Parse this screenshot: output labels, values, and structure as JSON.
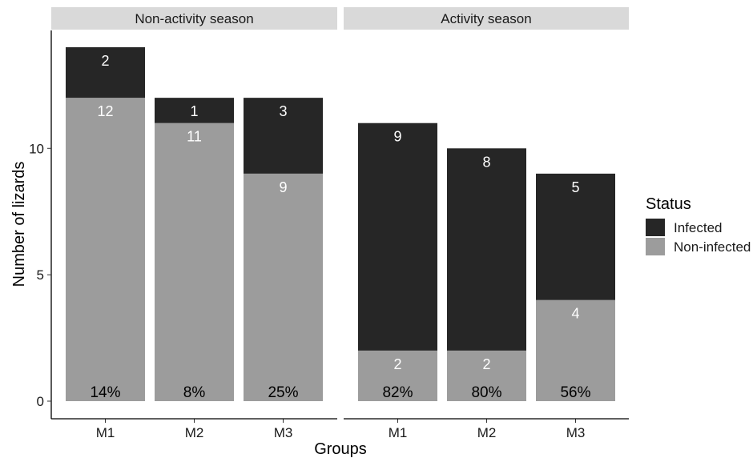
{
  "chart_data": {
    "type": "bar",
    "stacked": true,
    "xlabel": "Groups",
    "ylabel": "Number of lizards",
    "ylim": [
      0,
      14.5
    ],
    "yticks": [
      0,
      5,
      10
    ],
    "grid": false,
    "legend": {
      "title": "Status",
      "placement": "right",
      "items": [
        {
          "name": "Infected",
          "color": "#262626"
        },
        {
          "name": "Non-infected",
          "color": "#9c9c9c"
        }
      ]
    },
    "categories": [
      "M1",
      "M2",
      "M3"
    ],
    "panels": [
      {
        "title": "Non-activity season",
        "series": [
          {
            "name": "Non-infected",
            "values": [
              12,
              11,
              9
            ]
          },
          {
            "name": "Infected",
            "values": [
              2,
              1,
              3
            ]
          }
        ],
        "percent_infected": [
          "14%",
          "8%",
          "25%"
        ]
      },
      {
        "title": "Activity season",
        "series": [
          {
            "name": "Non-infected",
            "values": [
              2,
              2,
              4
            ]
          },
          {
            "name": "Infected",
            "values": [
              9,
              8,
              5
            ]
          }
        ],
        "percent_infected": [
          "82%",
          "80%",
          "56%"
        ]
      }
    ]
  }
}
